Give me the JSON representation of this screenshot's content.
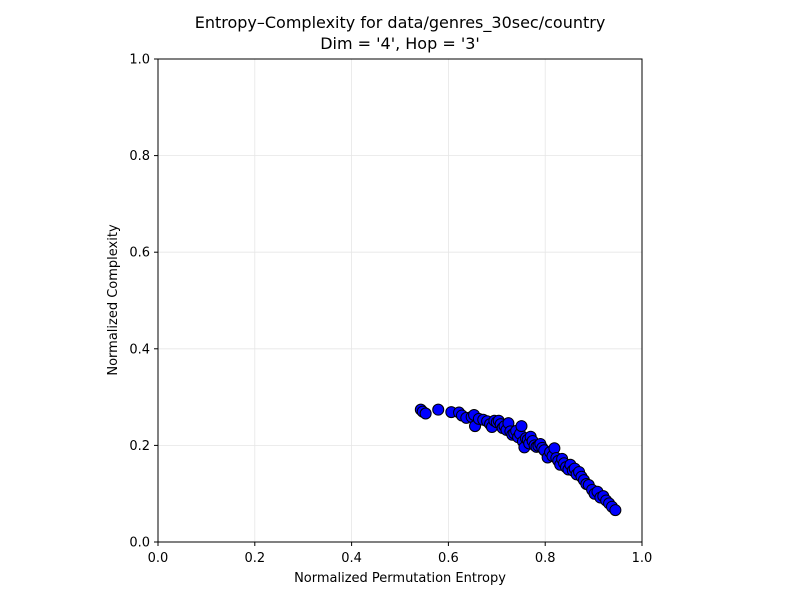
{
  "chart_data": {
    "type": "scatter",
    "title": [
      "Entropy–Complexity for data/genres_30sec/country",
      "Dim = '4', Hop = '3'"
    ],
    "xlabel": "Normalized Permutation Entropy",
    "ylabel": "Normalized Complexity",
    "xlim": [
      0.0,
      1.0
    ],
    "ylim": [
      0.0,
      1.0
    ],
    "xticks": [
      "0.0",
      "0.2",
      "0.4",
      "0.6",
      "0.8",
      "1.0"
    ],
    "yticks": [
      "0.0",
      "0.2",
      "0.4",
      "0.6",
      "0.8",
      "1.0"
    ],
    "grid": true,
    "marker_color": "#0000ff",
    "marker_edge_color": "#000000",
    "points": [
      [
        0.543,
        0.274
      ],
      [
        0.547,
        0.27
      ],
      [
        0.553,
        0.266
      ],
      [
        0.579,
        0.274
      ],
      [
        0.606,
        0.269
      ],
      [
        0.622,
        0.268
      ],
      [
        0.628,
        0.262
      ],
      [
        0.637,
        0.257
      ],
      [
        0.648,
        0.259
      ],
      [
        0.653,
        0.263
      ],
      [
        0.655,
        0.24
      ],
      [
        0.663,
        0.255
      ],
      [
        0.672,
        0.253
      ],
      [
        0.68,
        0.25
      ],
      [
        0.686,
        0.244
      ],
      [
        0.69,
        0.238
      ],
      [
        0.695,
        0.251
      ],
      [
        0.7,
        0.248
      ],
      [
        0.704,
        0.251
      ],
      [
        0.708,
        0.244
      ],
      [
        0.712,
        0.236
      ],
      [
        0.716,
        0.24
      ],
      [
        0.72,
        0.232
      ],
      [
        0.724,
        0.246
      ],
      [
        0.728,
        0.229
      ],
      [
        0.732,
        0.222
      ],
      [
        0.736,
        0.225
      ],
      [
        0.74,
        0.23
      ],
      [
        0.744,
        0.217
      ],
      [
        0.748,
        0.224
      ],
      [
        0.751,
        0.24
      ],
      [
        0.754,
        0.208
      ],
      [
        0.757,
        0.196
      ],
      [
        0.76,
        0.215
      ],
      [
        0.764,
        0.212
      ],
      [
        0.767,
        0.204
      ],
      [
        0.77,
        0.218
      ],
      [
        0.774,
        0.209
      ],
      [
        0.778,
        0.2
      ],
      [
        0.782,
        0.197
      ],
      [
        0.786,
        0.199
      ],
      [
        0.79,
        0.203
      ],
      [
        0.794,
        0.195
      ],
      [
        0.798,
        0.19
      ],
      [
        0.805,
        0.175
      ],
      [
        0.81,
        0.186
      ],
      [
        0.815,
        0.178
      ],
      [
        0.819,
        0.194
      ],
      [
        0.823,
        0.174
      ],
      [
        0.827,
        0.168
      ],
      [
        0.831,
        0.16
      ],
      [
        0.835,
        0.172
      ],
      [
        0.839,
        0.163
      ],
      [
        0.843,
        0.155
      ],
      [
        0.848,
        0.15
      ],
      [
        0.852,
        0.16
      ],
      [
        0.857,
        0.148
      ],
      [
        0.861,
        0.152
      ],
      [
        0.865,
        0.14
      ],
      [
        0.87,
        0.145
      ],
      [
        0.875,
        0.135
      ],
      [
        0.88,
        0.128
      ],
      [
        0.885,
        0.12
      ],
      [
        0.89,
        0.118
      ],
      [
        0.897,
        0.108
      ],
      [
        0.902,
        0.1
      ],
      [
        0.908,
        0.104
      ],
      [
        0.914,
        0.092
      ],
      [
        0.92,
        0.095
      ],
      [
        0.926,
        0.086
      ],
      [
        0.932,
        0.08
      ],
      [
        0.938,
        0.073
      ],
      [
        0.945,
        0.066
      ]
    ]
  }
}
